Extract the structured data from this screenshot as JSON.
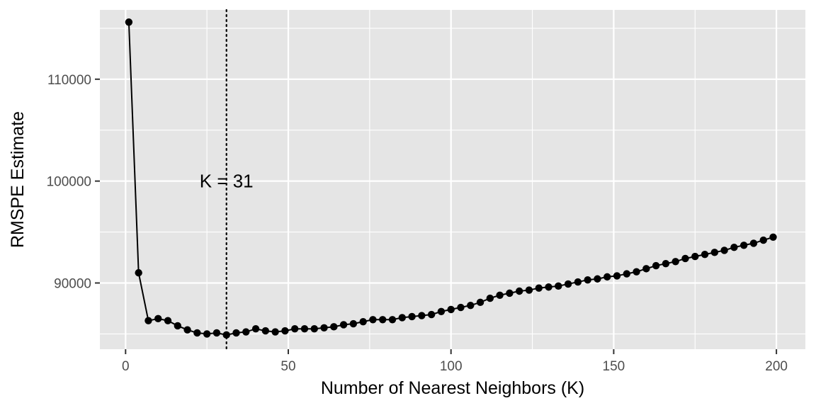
{
  "chart_data": {
    "type": "line",
    "title": "",
    "xlabel": "Number of Nearest Neighbors (K)",
    "ylabel": "RMSPE Estimate",
    "xlim": [
      -7.9,
      208.9
    ],
    "ylim": [
      83500,
      116800
    ],
    "x_ticks": [
      0,
      50,
      100,
      150,
      200
    ],
    "y_ticks": [
      90000,
      100000,
      110000
    ],
    "grid": true,
    "legend": "none",
    "colors": {
      "panel_background": "#e5e5e5",
      "grid": "#ffffff",
      "series": "#000000",
      "tick_text": "#4d4d4d"
    },
    "vline": {
      "x": 31,
      "style": "dotted",
      "label": "K = 31",
      "label_y": 100000
    },
    "series": [
      {
        "x": [
          1,
          4,
          7,
          10,
          13,
          16,
          19,
          22,
          25,
          28,
          31,
          34,
          37,
          40,
          43,
          46,
          49,
          52,
          55,
          58,
          61,
          64,
          67,
          70,
          73,
          76,
          79,
          82,
          85,
          88,
          91,
          94,
          97,
          100,
          103,
          106,
          109,
          112,
          115,
          118,
          121,
          124,
          127,
          130,
          133,
          136,
          139,
          142,
          145,
          148,
          151,
          154,
          157,
          160,
          163,
          166,
          169,
          172,
          175,
          178,
          181,
          184,
          187,
          190,
          193,
          196,
          199
        ],
        "y": [
          115600,
          91000,
          86300,
          86500,
          86300,
          85800,
          85400,
          85100,
          85000,
          85100,
          84900,
          85100,
          85200,
          85500,
          85300,
          85200,
          85300,
          85500,
          85500,
          85500,
          85600,
          85700,
          85900,
          86000,
          86200,
          86400,
          86400,
          86400,
          86600,
          86700,
          86800,
          86900,
          87200,
          87400,
          87600,
          87800,
          88100,
          88500,
          88800,
          89000,
          89200,
          89300,
          89500,
          89600,
          89700,
          89900,
          90100,
          90300,
          90400,
          90600,
          90700,
          90900,
          91100,
          91400,
          91700,
          91900,
          92100,
          92400,
          92600,
          92800,
          93000,
          93200,
          93500,
          93700,
          93900,
          94200,
          94500
        ]
      }
    ]
  }
}
